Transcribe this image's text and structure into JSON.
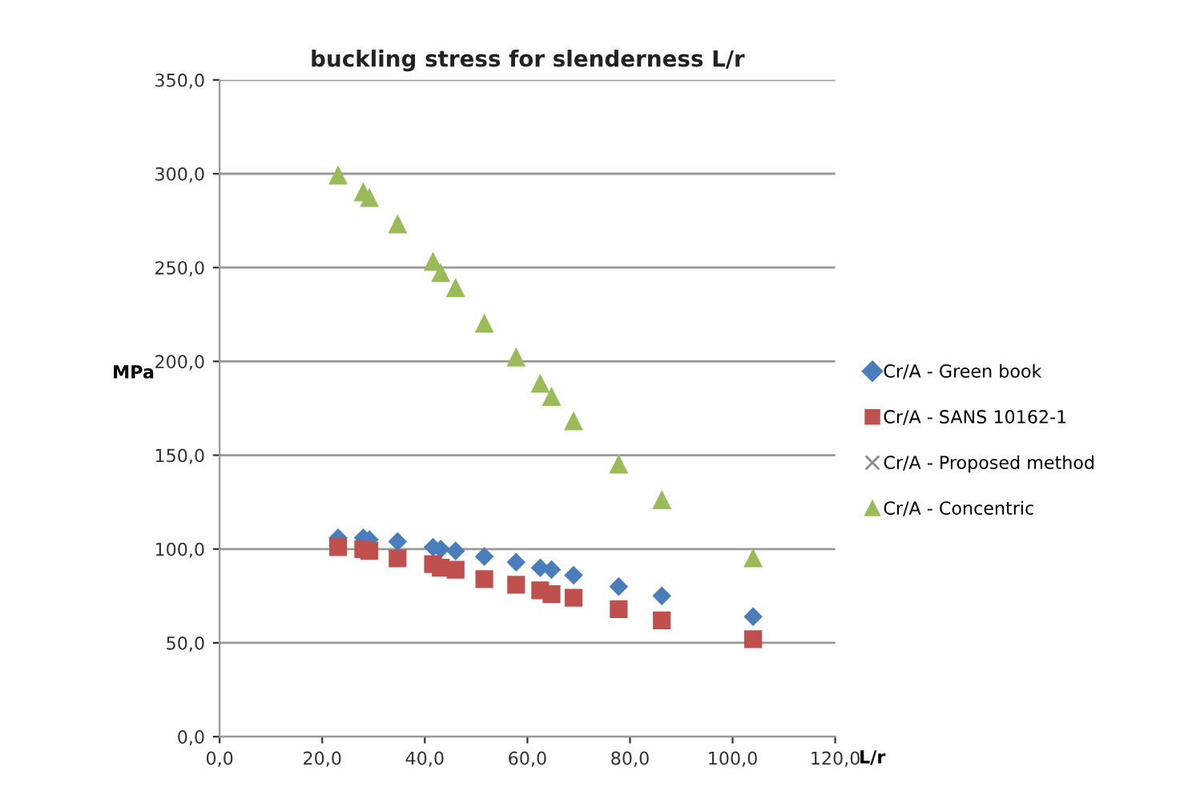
{
  "chart_data": {
    "type": "scatter",
    "title": "buckling stress for slenderness L/r",
    "xlabel": "L/r",
    "ylabel": "MPa",
    "x": [
      23.1,
      28.0,
      29.2,
      34.7,
      41.6,
      43.1,
      46.0,
      51.6,
      57.8,
      62.5,
      64.7,
      69.0,
      77.8,
      86.2,
      104.0
    ],
    "series": [
      {
        "name": "Cr/A - Green book",
        "color": "#4a7ebb",
        "marker": "diamond",
        "values": [
          106,
          106,
          105,
          104,
          101,
          100,
          99,
          96,
          93,
          90,
          89,
          86,
          80,
          75,
          64
        ]
      },
      {
        "name": "Cr/A - SANS 10162-1",
        "color": "#c0504d",
        "marker": "square",
        "values": [
          101,
          100,
          99,
          95,
          92,
          90,
          89,
          84,
          81,
          78,
          76,
          74,
          68,
          62,
          52
        ]
      },
      {
        "name": "Cr/A - Proposed method",
        "color": "#8c8c8c",
        "marker": "cross",
        "values": [
          null,
          null,
          null,
          null,
          null,
          null,
          null,
          null,
          null,
          null,
          null,
          null,
          null,
          null,
          null
        ]
      },
      {
        "name": "Cr/A - Concentric",
        "color": "#9bbb59",
        "marker": "triangle",
        "values": [
          299,
          290,
          287,
          273,
          253,
          247,
          239,
          220,
          202,
          188,
          181,
          168,
          145,
          126,
          95
        ]
      }
    ],
    "xlim": [
      0,
      120
    ],
    "xticks": [
      {
        "value": 0,
        "label": "0,0"
      },
      {
        "value": 20,
        "label": "20,0"
      },
      {
        "value": 40,
        "label": "40,0"
      },
      {
        "value": 60,
        "label": "60,0"
      },
      {
        "value": 80,
        "label": "80,0"
      },
      {
        "value": 100,
        "label": "100,0"
      },
      {
        "value": 120,
        "label": "120,0"
      }
    ],
    "ylim": [
      0,
      350
    ],
    "yticks": [
      {
        "value": 0,
        "label": "0,0"
      },
      {
        "value": 50,
        "label": "50,0"
      },
      {
        "value": 100,
        "label": "100,0"
      },
      {
        "value": 150,
        "label": "150,0"
      },
      {
        "value": 200,
        "label": "200,0"
      },
      {
        "value": 250,
        "label": "250,0"
      },
      {
        "value": 300,
        "label": "300,0"
      },
      {
        "value": 350,
        "label": "350,0"
      }
    ],
    "grid": "y",
    "legend": "right"
  }
}
